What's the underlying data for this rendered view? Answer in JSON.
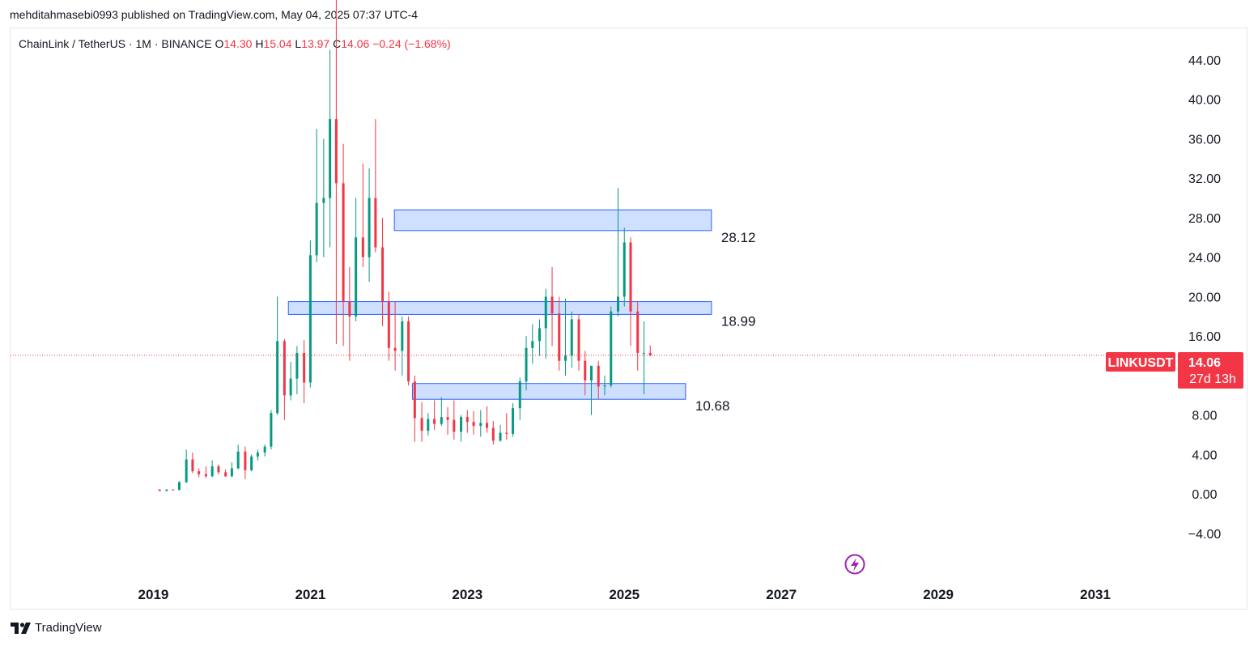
{
  "header": {
    "published_line": "mehditahmasebi0993 published on TradingView.com, May 04, 2025 07:37 UTC-4"
  },
  "legend": {
    "symbol_line": "ChainLink / TetherUS · 1M · BINANCE",
    "open_label": "O",
    "open": "14.30",
    "high_label": "H",
    "high": "15.04",
    "low_label": "L",
    "low": "13.97",
    "close_label": "C",
    "close": "14.06",
    "change": "−0.24 (−1.68%)"
  },
  "price_tag": {
    "symbol": "LINKUSDT",
    "price": "14.06",
    "countdown": "27d 13h"
  },
  "footer": {
    "brand": "TradingView"
  },
  "colors": {
    "up": "#089981",
    "down": "#f23645",
    "zone_fill": "#c9dcff",
    "zone_border": "#2962ff"
  },
  "chart_data": {
    "type": "candlestick",
    "interval": "1M",
    "x_ticks": [
      "2019",
      "2021",
      "2023",
      "2025",
      "2027",
      "2029",
      "2031"
    ],
    "y_ticks": [
      "44.00",
      "40.00",
      "36.00",
      "32.00",
      "28.00",
      "24.00",
      "20.00",
      "16.00",
      "8.00",
      "4.00",
      "0.00",
      "−4.00"
    ],
    "x_range": [
      2017.17,
      2032.0
    ],
    "y_range": [
      -8.6,
      47.2
    ],
    "last_price": 14.06,
    "zones": [
      {
        "label": "28.12",
        "start": 2022.07,
        "end": 2026.11,
        "low": 26.7,
        "high": 28.8
      },
      {
        "label": "18.99",
        "start": 2020.72,
        "end": 2026.11,
        "low": 18.2,
        "high": 19.5
      },
      {
        "label": "10.68",
        "start": 2022.3,
        "end": 2025.78,
        "low": 9.6,
        "high": 11.2
      }
    ],
    "candles": [
      {
        "t": 2019.08,
        "o": 0.45,
        "h": 0.48,
        "l": 0.3,
        "c": 0.3
      },
      {
        "t": 2019.17,
        "o": 0.3,
        "h": 0.48,
        "l": 0.28,
        "c": 0.44
      },
      {
        "t": 2019.25,
        "o": 0.44,
        "h": 0.5,
        "l": 0.38,
        "c": 0.4
      },
      {
        "t": 2019.33,
        "o": 0.4,
        "h": 1.3,
        "l": 0.38,
        "c": 1.2
      },
      {
        "t": 2019.42,
        "o": 1.2,
        "h": 4.5,
        "l": 1.1,
        "c": 3.5
      },
      {
        "t": 2019.5,
        "o": 3.5,
        "h": 4.2,
        "l": 2.1,
        "c": 2.3
      },
      {
        "t": 2019.58,
        "o": 2.3,
        "h": 2.6,
        "l": 1.7,
        "c": 2.0
      },
      {
        "t": 2019.67,
        "o": 2.0,
        "h": 2.8,
        "l": 1.6,
        "c": 1.8
      },
      {
        "t": 2019.75,
        "o": 1.8,
        "h": 3.4,
        "l": 1.7,
        "c": 2.8
      },
      {
        "t": 2019.83,
        "o": 2.8,
        "h": 3.0,
        "l": 2.0,
        "c": 2.2
      },
      {
        "t": 2019.92,
        "o": 2.2,
        "h": 2.5,
        "l": 1.7,
        "c": 1.8
      },
      {
        "t": 2020.0,
        "o": 1.8,
        "h": 3.2,
        "l": 1.7,
        "c": 2.6
      },
      {
        "t": 2020.08,
        "o": 2.6,
        "h": 5.0,
        "l": 2.5,
        "c": 4.3
      },
      {
        "t": 2020.17,
        "o": 4.3,
        "h": 4.8,
        "l": 1.5,
        "c": 2.4
      },
      {
        "t": 2020.25,
        "o": 2.4,
        "h": 4.0,
        "l": 2.3,
        "c": 3.8
      },
      {
        "t": 2020.33,
        "o": 3.8,
        "h": 4.5,
        "l": 3.4,
        "c": 4.2
      },
      {
        "t": 2020.42,
        "o": 4.2,
        "h": 5.0,
        "l": 3.8,
        "c": 4.8
      },
      {
        "t": 2020.5,
        "o": 4.8,
        "h": 8.5,
        "l": 4.5,
        "c": 8.2
      },
      {
        "t": 2020.58,
        "o": 8.2,
        "h": 20.0,
        "l": 8.0,
        "c": 15.5
      },
      {
        "t": 2020.67,
        "o": 15.5,
        "h": 15.7,
        "l": 7.5,
        "c": 10.0
      },
      {
        "t": 2020.75,
        "o": 10.0,
        "h": 13.4,
        "l": 9.5,
        "c": 11.7
      },
      {
        "t": 2020.83,
        "o": 11.7,
        "h": 15.0,
        "l": 10.1,
        "c": 14.3
      },
      {
        "t": 2020.92,
        "o": 14.3,
        "h": 15.6,
        "l": 9.2,
        "c": 11.3
      },
      {
        "t": 2021.0,
        "o": 11.3,
        "h": 25.7,
        "l": 10.8,
        "c": 24.2
      },
      {
        "t": 2021.08,
        "o": 24.2,
        "h": 37.0,
        "l": 23.5,
        "c": 29.5
      },
      {
        "t": 2021.17,
        "o": 29.5,
        "h": 36.0,
        "l": 24.0,
        "c": 30.0
      },
      {
        "t": 2021.25,
        "o": 30.0,
        "h": 45.0,
        "l": 25.0,
        "c": 38.0
      },
      {
        "t": 2021.33,
        "o": 38.0,
        "h": 52.7,
        "l": 15.2,
        "c": 31.5
      },
      {
        "t": 2021.42,
        "o": 31.5,
        "h": 35.5,
        "l": 15.0,
        "c": 19.5
      },
      {
        "t": 2021.5,
        "o": 19.5,
        "h": 23.0,
        "l": 13.5,
        "c": 18.0
      },
      {
        "t": 2021.58,
        "o": 18.0,
        "h": 30.0,
        "l": 17.5,
        "c": 26.0
      },
      {
        "t": 2021.67,
        "o": 26.0,
        "h": 33.5,
        "l": 23.0,
        "c": 24.0
      },
      {
        "t": 2021.75,
        "o": 24.0,
        "h": 33.0,
        "l": 21.5,
        "c": 30.0
      },
      {
        "t": 2021.83,
        "o": 30.0,
        "h": 38.0,
        "l": 24.5,
        "c": 25.0
      },
      {
        "t": 2021.92,
        "o": 25.0,
        "h": 28.0,
        "l": 17.0,
        "c": 19.5
      },
      {
        "t": 2022.0,
        "o": 19.5,
        "h": 20.5,
        "l": 13.5,
        "c": 14.8
      },
      {
        "t": 2022.08,
        "o": 14.8,
        "h": 19.5,
        "l": 12.5,
        "c": 14.5
      },
      {
        "t": 2022.17,
        "o": 14.5,
        "h": 18.0,
        "l": 12.0,
        "c": 17.5
      },
      {
        "t": 2022.25,
        "o": 17.5,
        "h": 18.0,
        "l": 11.0,
        "c": 11.4
      },
      {
        "t": 2022.33,
        "o": 11.4,
        "h": 12.0,
        "l": 5.3,
        "c": 7.7
      },
      {
        "t": 2022.42,
        "o": 7.7,
        "h": 9.3,
        "l": 5.3,
        "c": 6.4
      },
      {
        "t": 2022.5,
        "o": 6.4,
        "h": 8.2,
        "l": 5.9,
        "c": 7.6
      },
      {
        "t": 2022.58,
        "o": 7.6,
        "h": 9.5,
        "l": 6.5,
        "c": 7.1
      },
      {
        "t": 2022.67,
        "o": 7.1,
        "h": 9.8,
        "l": 6.9,
        "c": 7.8
      },
      {
        "t": 2022.75,
        "o": 7.8,
        "h": 8.8,
        "l": 6.0,
        "c": 7.5
      },
      {
        "t": 2022.83,
        "o": 7.5,
        "h": 9.5,
        "l": 5.5,
        "c": 6.3
      },
      {
        "t": 2022.92,
        "o": 6.3,
        "h": 8.0,
        "l": 5.3,
        "c": 7.8
      },
      {
        "t": 2023.0,
        "o": 7.8,
        "h": 8.5,
        "l": 6.2,
        "c": 7.3
      },
      {
        "t": 2023.08,
        "o": 7.3,
        "h": 8.4,
        "l": 6.0,
        "c": 6.9
      },
      {
        "t": 2023.17,
        "o": 6.9,
        "h": 8.5,
        "l": 5.8,
        "c": 7.2
      },
      {
        "t": 2023.25,
        "o": 7.2,
        "h": 8.9,
        "l": 6.2,
        "c": 6.7
      },
      {
        "t": 2023.33,
        "o": 6.7,
        "h": 7.4,
        "l": 5.0,
        "c": 5.4
      },
      {
        "t": 2023.42,
        "o": 5.4,
        "h": 7.0,
        "l": 5.3,
        "c": 6.2
      },
      {
        "t": 2023.5,
        "o": 6.2,
        "h": 8.2,
        "l": 5.5,
        "c": 6.1
      },
      {
        "t": 2023.58,
        "o": 6.1,
        "h": 9.2,
        "l": 5.8,
        "c": 8.7
      },
      {
        "t": 2023.67,
        "o": 8.7,
        "h": 11.8,
        "l": 7.5,
        "c": 11.4
      },
      {
        "t": 2023.75,
        "o": 11.4,
        "h": 16.0,
        "l": 10.5,
        "c": 14.8
      },
      {
        "t": 2023.83,
        "o": 14.8,
        "h": 17.2,
        "l": 13.2,
        "c": 15.5
      },
      {
        "t": 2023.92,
        "o": 15.5,
        "h": 17.7,
        "l": 14.0,
        "c": 16.8
      },
      {
        "t": 2024.0,
        "o": 16.8,
        "h": 20.8,
        "l": 13.7,
        "c": 20.0
      },
      {
        "t": 2024.08,
        "o": 20.0,
        "h": 23.0,
        "l": 15.0,
        "c": 18.3
      },
      {
        "t": 2024.17,
        "o": 18.3,
        "h": 20.0,
        "l": 12.5,
        "c": 13.5
      },
      {
        "t": 2024.25,
        "o": 13.5,
        "h": 19.8,
        "l": 12.0,
        "c": 14.0
      },
      {
        "t": 2024.33,
        "o": 14.0,
        "h": 18.5,
        "l": 12.8,
        "c": 17.7
      },
      {
        "t": 2024.42,
        "o": 17.7,
        "h": 18.2,
        "l": 12.5,
        "c": 13.5
      },
      {
        "t": 2024.5,
        "o": 13.5,
        "h": 14.5,
        "l": 10.0,
        "c": 11.5
      },
      {
        "t": 2024.58,
        "o": 11.5,
        "h": 12.5,
        "l": 8.0,
        "c": 13.0
      },
      {
        "t": 2024.67,
        "o": 13.0,
        "h": 13.5,
        "l": 9.6,
        "c": 10.9
      },
      {
        "t": 2024.75,
        "o": 10.9,
        "h": 12.0,
        "l": 10.0,
        "c": 11.0
      },
      {
        "t": 2024.83,
        "o": 11.0,
        "h": 19.0,
        "l": 10.8,
        "c": 18.5
      },
      {
        "t": 2024.92,
        "o": 18.5,
        "h": 31.0,
        "l": 18.0,
        "c": 20.0
      },
      {
        "t": 2025.0,
        "o": 20.0,
        "h": 27.0,
        "l": 19.0,
        "c": 25.5
      },
      {
        "t": 2025.08,
        "o": 25.5,
        "h": 26.0,
        "l": 15.0,
        "c": 18.5
      },
      {
        "t": 2025.17,
        "o": 18.5,
        "h": 19.5,
        "l": 12.5,
        "c": 14.3
      },
      {
        "t": 2025.25,
        "o": 14.3,
        "h": 17.5,
        "l": 10.1,
        "c": 14.3
      },
      {
        "t": 2025.33,
        "o": 14.3,
        "h": 15.04,
        "l": 13.97,
        "c": 14.06
      }
    ]
  }
}
